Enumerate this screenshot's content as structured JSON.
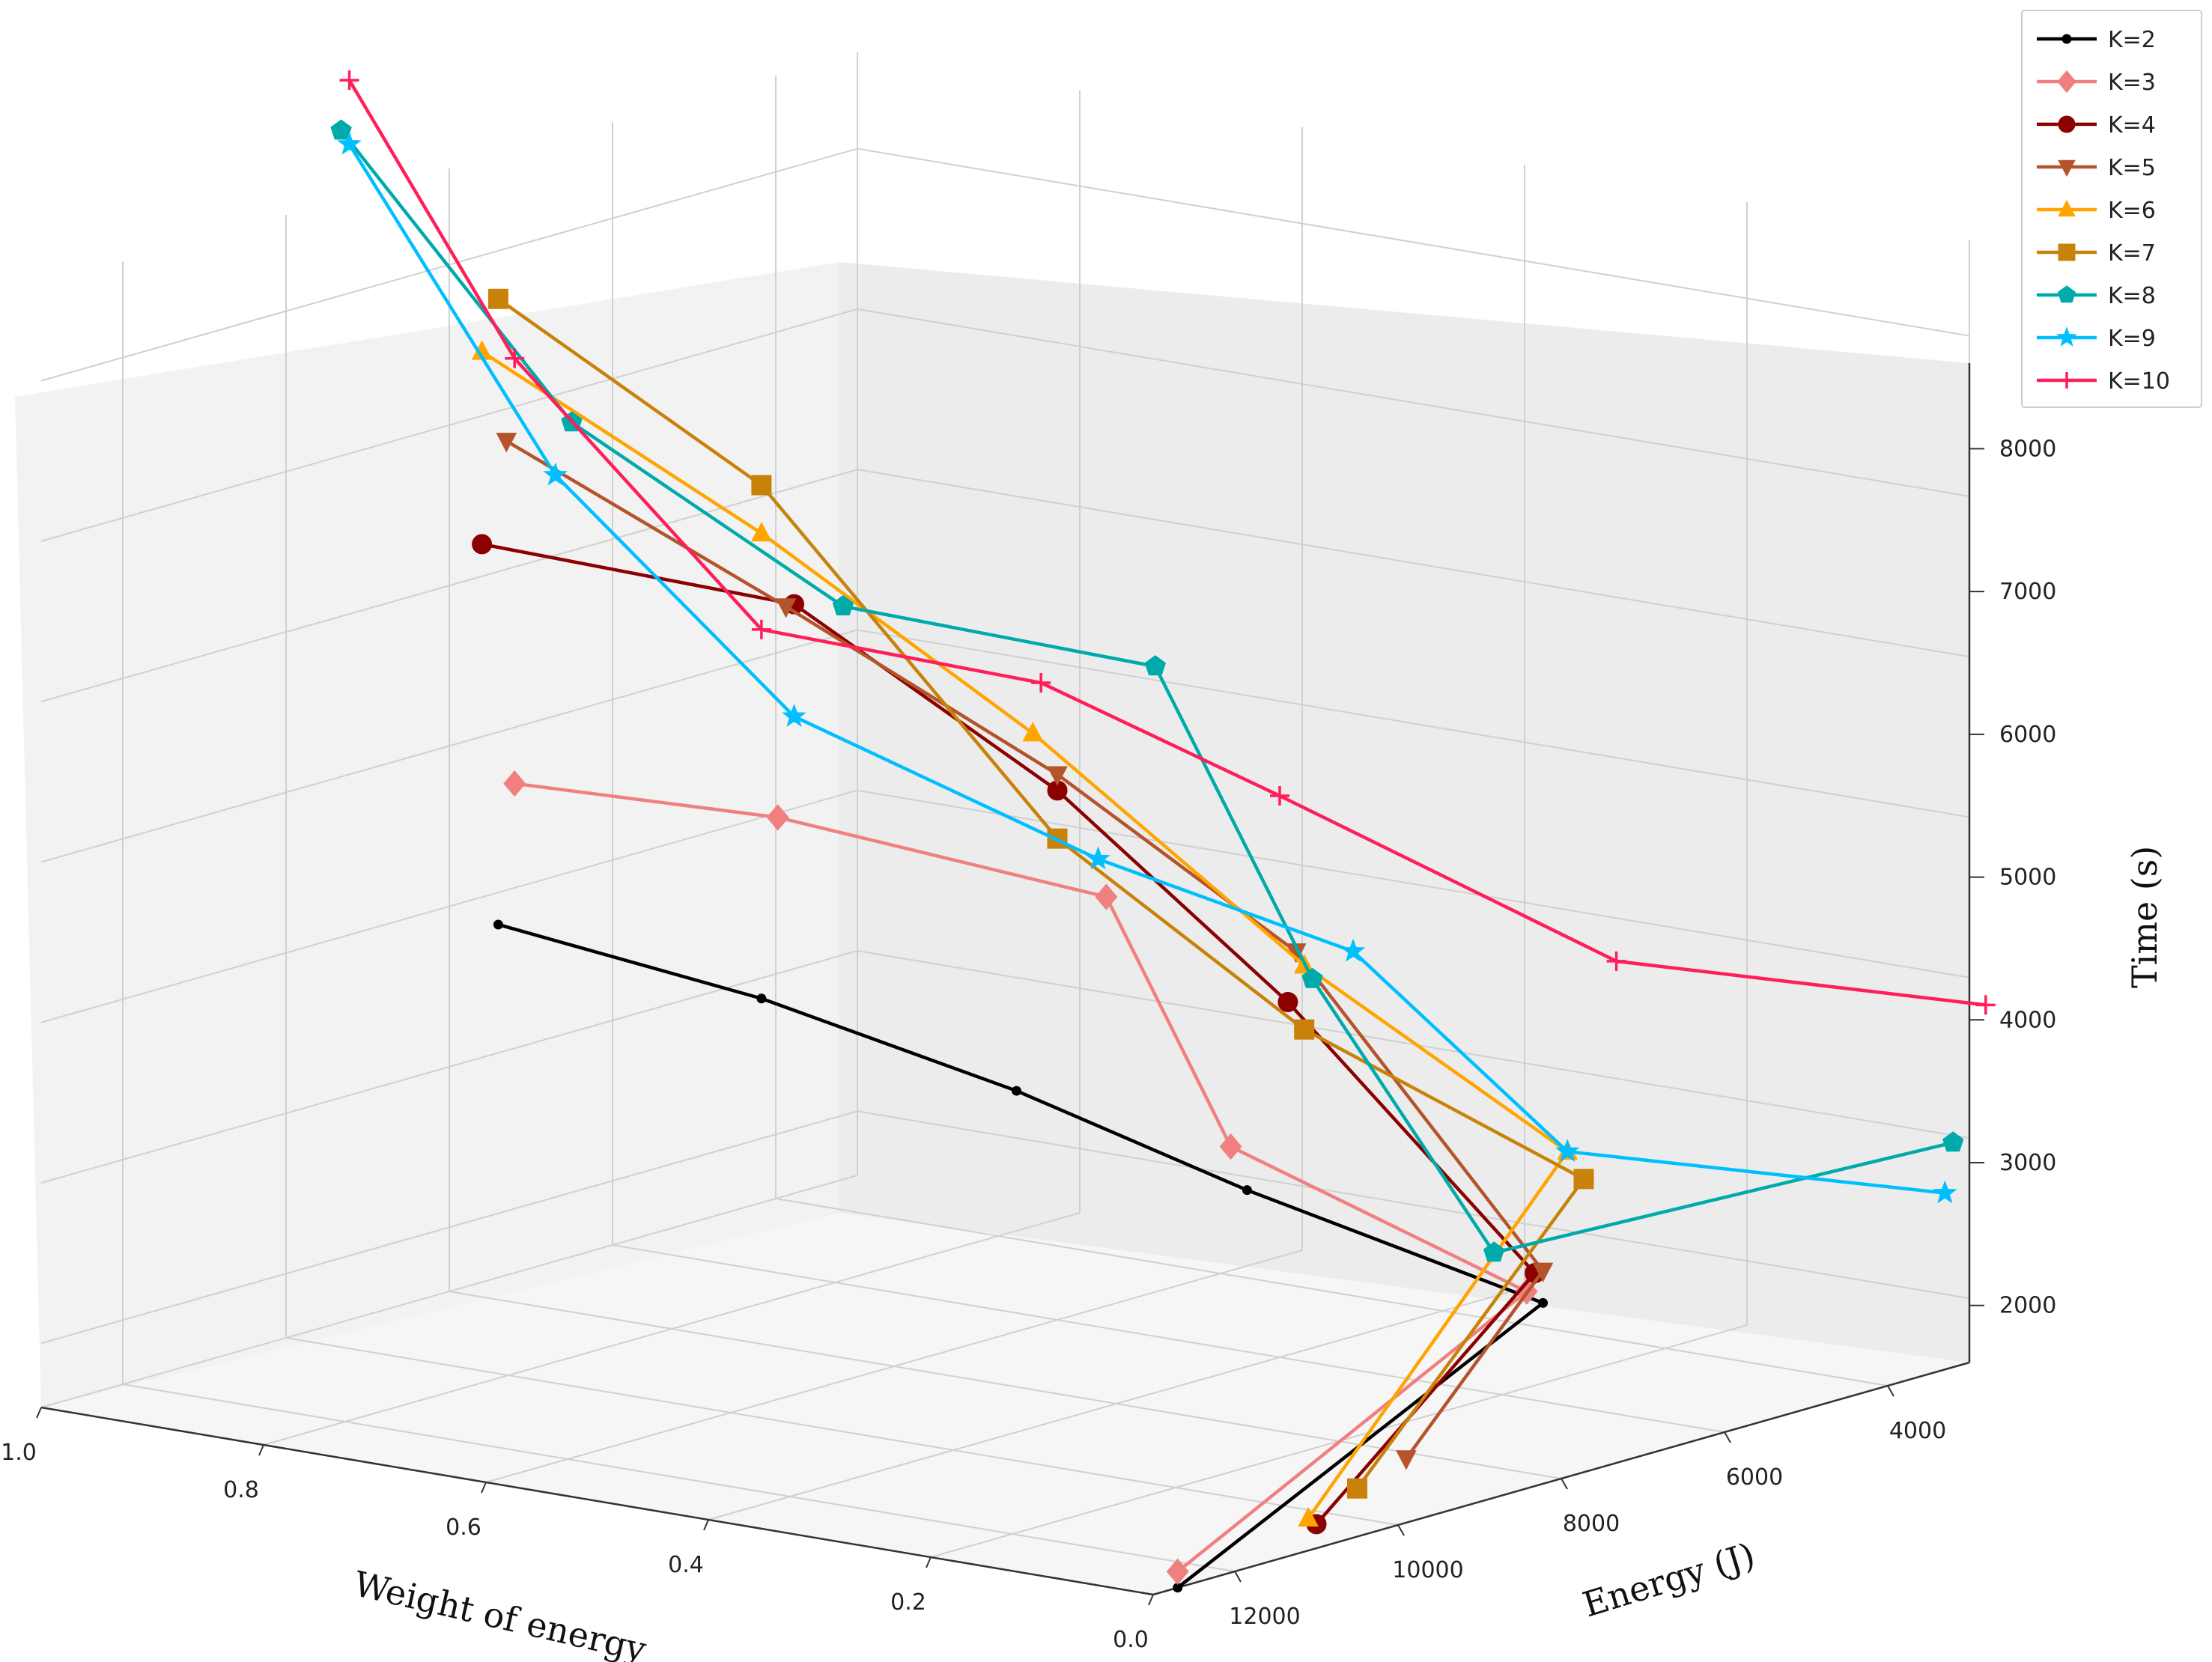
{
  "chart_data": {
    "type": "line",
    "projection": "3d",
    "title": "",
    "xlabel": "Weight of energy",
    "ylabel": "Energy (J)",
    "zlabel": "Time (s)",
    "x_ticks": [
      "1.0",
      "0.8",
      "0.6",
      "0.4",
      "0.2",
      "0.0"
    ],
    "y_ticks": [
      "12000",
      "10000",
      "8000",
      "6000",
      "4000"
    ],
    "z_ticks": [
      "2000",
      "3000",
      "4000",
      "5000",
      "6000",
      "7000",
      "8000"
    ],
    "xlim": [
      0,
      1
    ],
    "ylim": [
      3000,
      13000
    ],
    "zlim": [
      1600,
      8600
    ],
    "grid": true,
    "legend_position": "top-right",
    "x": [
      0.0,
      0.2,
      0.4,
      0.6,
      0.8,
      1.0
    ],
    "series": [
      {
        "name": "K=2",
        "color": "#000000",
        "marker": "dot",
        "points": [
          [
            0.0,
            12700,
            1600
          ],
          [
            0.2,
            5500,
            2100
          ],
          [
            0.4,
            6400,
            2700
          ],
          [
            0.6,
            6500,
            3100
          ],
          [
            0.8,
            6900,
            3500
          ],
          [
            1.0,
            7400,
            3800
          ]
        ]
      },
      {
        "name": "K=3",
        "color": "#f08080",
        "marker": "diamond",
        "points": [
          [
            0.0,
            12700,
            1700
          ],
          [
            0.2,
            5700,
            2200
          ],
          [
            0.4,
            6600,
            3000
          ],
          [
            0.6,
            5400,
            4150
          ],
          [
            0.8,
            6700,
            4600
          ],
          [
            1.0,
            7200,
            4650
          ]
        ]
      },
      {
        "name": "K=4",
        "color": "#8b0000",
        "marker": "circle",
        "points": [
          [
            0.0,
            11000,
            1750
          ],
          [
            0.2,
            5600,
            2300
          ],
          [
            0.4,
            5900,
            3800
          ],
          [
            0.6,
            6000,
            4900
          ],
          [
            0.8,
            6500,
            5900
          ],
          [
            1.0,
            7600,
            6200
          ]
        ]
      },
      {
        "name": "K=5",
        "color": "#b5532a",
        "marker": "triangle-down",
        "points": [
          [
            0.0,
            9900,
            2000
          ],
          [
            0.2,
            5500,
            2300
          ],
          [
            0.4,
            5800,
            4100
          ],
          [
            0.6,
            6000,
            5000
          ],
          [
            0.8,
            6600,
            5900
          ],
          [
            1.0,
            7300,
            6800
          ]
        ]
      },
      {
        "name": "K=6",
        "color": "#ffa500",
        "marker": "triangle-up",
        "points": [
          [
            0.0,
            11100,
            1800
          ],
          [
            0.2,
            5200,
            3000
          ],
          [
            0.4,
            5700,
            4000
          ],
          [
            0.6,
            6300,
            5300
          ],
          [
            0.8,
            6900,
            6400
          ],
          [
            1.0,
            7600,
            7400
          ]
        ]
      },
      {
        "name": "K=7",
        "color": "#c8820a",
        "marker": "square",
        "points": [
          [
            0.0,
            10500,
            1900
          ],
          [
            0.2,
            5000,
            2800
          ],
          [
            0.4,
            5700,
            3600
          ],
          [
            0.6,
            6000,
            4600
          ],
          [
            0.8,
            6900,
            6700
          ],
          [
            1.0,
            7400,
            7700
          ]
        ]
      },
      {
        "name": "K=8",
        "color": "#00aaaa",
        "marker": "pentagon",
        "points": [
          [
            0.0,
            3200,
            3000
          ],
          [
            0.2,
            6100,
            2500
          ],
          [
            0.4,
            5600,
            3900
          ],
          [
            0.6,
            4800,
            5500
          ],
          [
            0.8,
            5900,
            5800
          ],
          [
            1.0,
            6500,
            6800
          ],
          [
            1.2,
            6600,
            8400
          ]
        ]
      },
      {
        "name": "K=9",
        "color": "#00bfff",
        "marker": "star",
        "points": [
          [
            0.0,
            3300,
            2700
          ],
          [
            0.2,
            5200,
            3000
          ],
          [
            0.4,
            5100,
            4000
          ],
          [
            0.6,
            5500,
            4400
          ],
          [
            0.8,
            6500,
            5200
          ],
          [
            1.0,
            6700,
            6500
          ],
          [
            1.2,
            6500,
            8300
          ]
        ]
      },
      {
        "name": "K=10",
        "color": "#ff1e5a",
        "marker": "plus",
        "points": [
          [
            0.0,
            2800,
            3800
          ],
          [
            0.2,
            4600,
            4100
          ],
          [
            0.4,
            6000,
            5100
          ],
          [
            0.6,
            6200,
            5600
          ],
          [
            0.8,
            6900,
            5800
          ],
          [
            1.0,
            7200,
            7300
          ],
          [
            1.2,
            6500,
            8700
          ]
        ]
      }
    ]
  }
}
